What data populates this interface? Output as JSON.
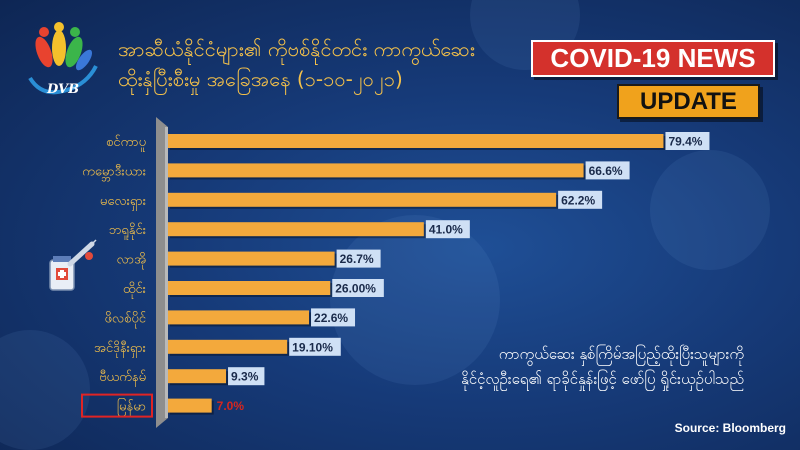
{
  "header": {
    "title_line1": "အာဆီယံနိုင်ငံများ၏ ကိုဗစ်နိုင်တင်း ကာကွယ်ဆေး",
    "title_line2": "ထိုးနှံပြီးစီးမှု အခြေအနေ (၁-၁၀-၂၀၂၁)",
    "logo_text": "DVB",
    "news_label": "COVID-19 NEWS",
    "update_label": "UPDATE"
  },
  "note": {
    "line1": "ကာကွယ်ဆေး နှစ်ကြိမ်အပြည့်ထိုးပြီးသူများကို",
    "line2": "နိုင်ငံ့လူဦးရေ၏ ရာခိုင်နှုန်းဖြင့် ဖော်ပြ ရှိုင်းယှဉ်ပါသည်"
  },
  "source": "Source: Bloomberg",
  "icons": {
    "logo": "dvb-logo-icon",
    "side": "vaccine-syringe-icon"
  },
  "colors": {
    "bar": "#f3a93c",
    "highlight_outline": "#e02424",
    "highlight_label": "#d7261e",
    "label_text": "#f3c04a"
  },
  "chart_data": {
    "type": "bar",
    "orientation": "horizontal",
    "categories": [
      "စင်ကာပူ",
      "ကမ္ဘောဒီးယား",
      "မလေးရှား",
      "ဘရူနိုင်း",
      "လာအို",
      "ထိုင်း",
      "ဖိလစ်ပိုင်",
      "အင်ဒိုနီးရှား",
      "ဗီယက်နမ်",
      "မြန်မာ"
    ],
    "values": [
      79.4,
      66.6,
      62.2,
      41.0,
      26.7,
      26.0,
      22.6,
      19.1,
      9.3,
      7.0
    ],
    "value_labels": [
      "79.4%",
      "66.6%",
      "62.2%",
      "41.0%",
      "26.7%",
      "26.00%",
      "22.6%",
      "19.10%",
      "9.3%",
      "7.0%"
    ],
    "highlight": "မြန်မာ",
    "xlim": [
      0,
      80
    ]
  }
}
